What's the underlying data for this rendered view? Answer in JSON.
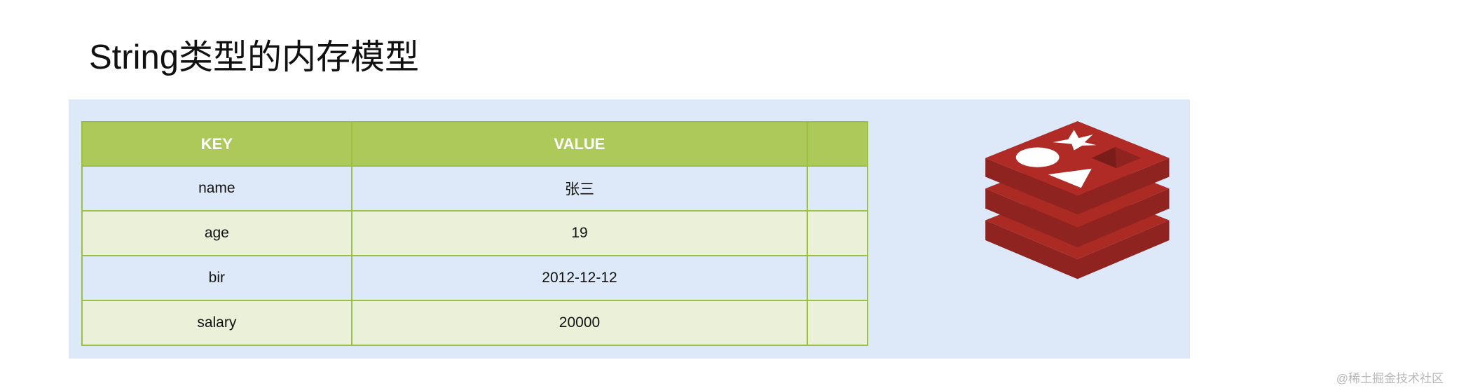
{
  "title": "String类型的内存模型",
  "table": {
    "headers": [
      "KEY",
      "VALUE",
      ""
    ],
    "rows": [
      {
        "key": "name",
        "value": "张三"
      },
      {
        "key": "age",
        "value": "19"
      },
      {
        "key": "bir",
        "value": "2012-12-12"
      },
      {
        "key": "salary",
        "value": "20000"
      }
    ]
  },
  "logo": {
    "name": "redis-logo-icon",
    "color": "#a82a24"
  },
  "watermark": "@稀土掘金技术社区",
  "colors": {
    "panel": "#dde8f8",
    "header": "#adc95a",
    "row_alt": "#ebf1d8",
    "border": "#9bc042"
  }
}
